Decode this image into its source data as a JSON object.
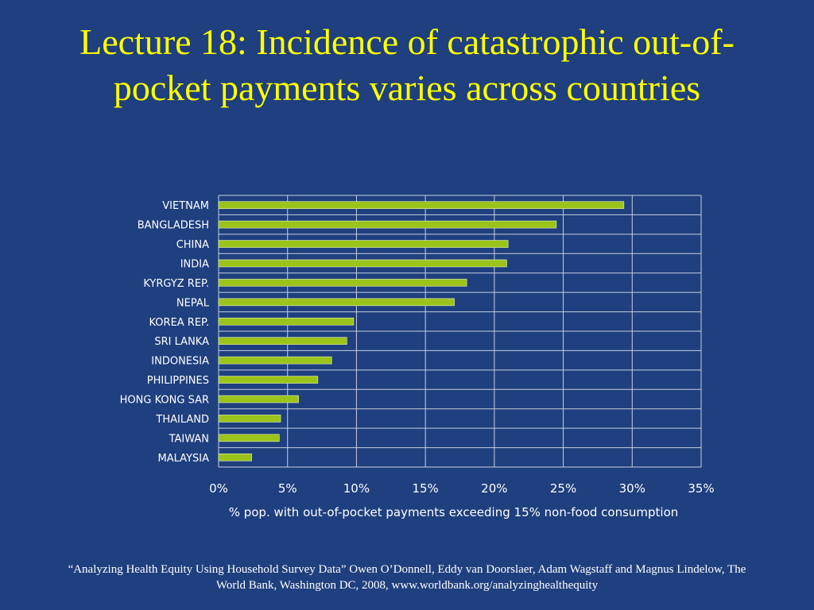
{
  "slide": {
    "title": "Lecture 18: Incidence of catastrophic out-of-pocket payments varies across countries",
    "source": "“Analyzing Health Equity Using Household Survey Data” Owen O’Donnell, Eddy van Doorslaer, Adam Wagstaff and Magnus Lindelow, The World Bank, Washington DC, 2008, www.worldbank.org/analyzinghealthequity"
  },
  "colors": {
    "background": "#1f3f7e",
    "title": "#ffff00",
    "bar": "#9bc41a",
    "grid": "#c8cfe0"
  },
  "chart_data": {
    "type": "bar",
    "orientation": "horizontal",
    "title": "",
    "xlabel": "% pop. with out-of-pocket payments exceeding 15% non-food consumption",
    "ylabel": "",
    "xlim": [
      0,
      35
    ],
    "xticks": [
      "0%",
      "5%",
      "10%",
      "15%",
      "20%",
      "25%",
      "30%",
      "35%"
    ],
    "grid": true,
    "legend": "none",
    "categories": [
      "VIETNAM",
      "BANGLADESH",
      "CHINA",
      "INDIA",
      "KYRGYZ REP.",
      "NEPAL",
      "KOREA REP.",
      "SRI LANKA",
      "INDONESIA",
      "PHILIPPINES",
      "HONG KONG SAR",
      "THAILAND",
      "TAIWAN",
      "MALAYSIA"
    ],
    "values": [
      29.4,
      24.5,
      21.0,
      20.9,
      18.0,
      17.1,
      9.8,
      9.3,
      8.2,
      7.2,
      5.8,
      4.5,
      4.4,
      2.4
    ]
  }
}
